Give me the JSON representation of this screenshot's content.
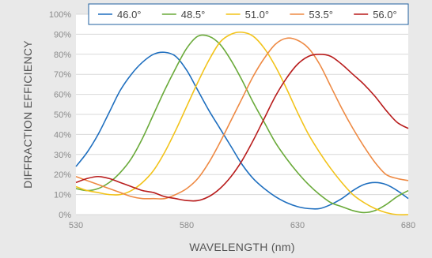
{
  "chart_data": {
    "type": "line",
    "xlabel": "WAVELENGTH (nm)",
    "ylabel": "DIFFRACTION EFFICIENCY",
    "xlim": [
      530,
      680
    ],
    "ylim": [
      0,
      100
    ],
    "x_ticks": [
      530,
      580,
      630,
      680
    ],
    "y_ticks": [
      "0%",
      "10%",
      "20%",
      "30%",
      "40%",
      "50%",
      "60%",
      "70%",
      "80%",
      "90%",
      "100%"
    ],
    "grid": "horizontal",
    "legend_position": "top",
    "series": [
      {
        "name": "46.0°",
        "color": "#1f6fbf",
        "x": [
          530,
          535,
          540,
          545,
          550,
          555,
          560,
          565,
          570,
          575,
          580,
          585,
          590,
          595,
          600,
          605,
          610,
          615,
          620,
          625,
          630,
          635,
          640,
          645,
          650,
          655,
          660,
          665,
          670,
          675,
          680
        ],
        "y": [
          24,
          31,
          40,
          51,
          62,
          70,
          76,
          80,
          81,
          79,
          72,
          62,
          52,
          43,
          34,
          25,
          18,
          13,
          9,
          6,
          4,
          3,
          3,
          5,
          8,
          12,
          15,
          16,
          15,
          12,
          8
        ]
      },
      {
        "name": "48.5°",
        "color": "#6aaa3a",
        "x": [
          530,
          535,
          540,
          545,
          550,
          555,
          560,
          565,
          570,
          575,
          580,
          585,
          590,
          595,
          600,
          605,
          610,
          615,
          620,
          625,
          630,
          635,
          640,
          645,
          650,
          655,
          660,
          665,
          670,
          675,
          680
        ],
        "y": [
          13,
          12,
          13,
          16,
          21,
          28,
          38,
          50,
          62,
          73,
          83,
          89,
          89,
          85,
          77,
          67,
          56,
          46,
          36,
          28,
          21,
          15,
          10,
          6,
          4,
          2,
          1,
          2,
          5,
          9,
          12
        ]
      },
      {
        "name": "51.0°",
        "color": "#f2c31a",
        "x": [
          530,
          535,
          540,
          545,
          550,
          555,
          560,
          565,
          570,
          575,
          580,
          585,
          590,
          595,
          600,
          605,
          610,
          615,
          620,
          625,
          630,
          635,
          640,
          645,
          650,
          655,
          660,
          665,
          670,
          675,
          680
        ],
        "y": [
          14,
          12,
          11,
          10,
          10,
          12,
          16,
          22,
          31,
          42,
          54,
          66,
          77,
          86,
          90,
          91,
          89,
          83,
          74,
          63,
          51,
          40,
          31,
          23,
          16,
          10,
          6,
          3,
          1,
          0,
          0
        ]
      },
      {
        "name": "53.5°",
        "color": "#ee8a44",
        "x": [
          530,
          535,
          540,
          545,
          550,
          555,
          560,
          565,
          570,
          575,
          580,
          585,
          590,
          595,
          600,
          605,
          610,
          615,
          620,
          625,
          630,
          635,
          640,
          645,
          650,
          655,
          660,
          665,
          670,
          675,
          680
        ],
        "y": [
          19,
          17,
          15,
          13,
          11,
          9,
          8,
          8,
          8,
          10,
          13,
          18,
          26,
          36,
          47,
          58,
          69,
          78,
          85,
          88,
          87,
          83,
          75,
          64,
          53,
          43,
          34,
          26,
          20,
          18,
          17
        ]
      },
      {
        "name": "56.0°",
        "color": "#b81c1c",
        "x": [
          530,
          535,
          540,
          545,
          550,
          555,
          560,
          565,
          570,
          575,
          580,
          585,
          590,
          595,
          600,
          605,
          610,
          615,
          620,
          625,
          630,
          635,
          640,
          645,
          650,
          655,
          660,
          665,
          670,
          675,
          680
        ],
        "y": [
          16,
          18,
          19,
          18,
          16,
          14,
          12,
          11,
          9,
          8,
          7,
          7,
          9,
          13,
          19,
          27,
          37,
          48,
          59,
          68,
          75,
          79,
          80,
          79,
          75,
          70,
          65,
          59,
          52,
          46,
          43
        ]
      }
    ]
  }
}
